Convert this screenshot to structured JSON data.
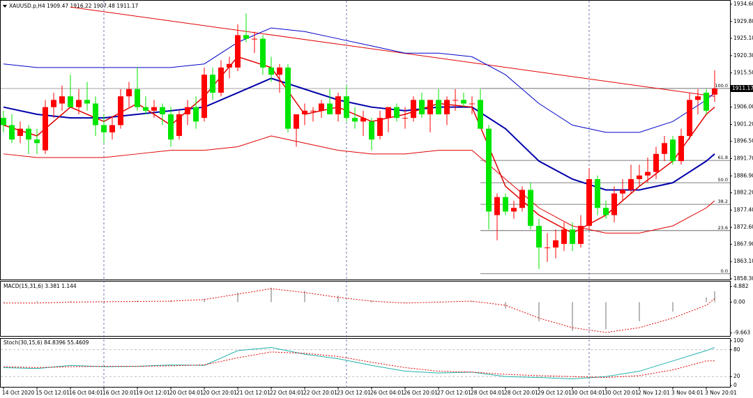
{
  "chart_data": [
    {
      "type": "candlestick",
      "title": "XAUUSD.p,H4  1909.47 1916.22 1907.48 1911.17",
      "up_color": "#ff0000",
      "down_color": "#00e600",
      "ylim": [
        1858.3,
        1934.6
      ],
      "yticks": [
        {
          "value": 1934.6,
          "label": "1934.60"
        },
        {
          "value": 1929.8,
          "label": "1929.80"
        },
        {
          "value": 1925.1,
          "label": "1925.10"
        },
        {
          "value": 1920.3,
          "label": "1920.30"
        },
        {
          "value": 1915.5,
          "label": "1915.50"
        },
        {
          "value": 1906.0,
          "label": "1906.00"
        },
        {
          "value": 1901.2,
          "label": "1901.20"
        },
        {
          "value": 1896.5,
          "label": "1896.50"
        },
        {
          "value": 1891.7,
          "label": "1891.70"
        },
        {
          "value": 1886.9,
          "label": "1886.90"
        },
        {
          "value": 1882.2,
          "label": "1882.20"
        },
        {
          "value": 1877.4,
          "label": "1877.40"
        },
        {
          "value": 1872.6,
          "label": "1872.60"
        },
        {
          "value": 1867.9,
          "label": "1867.90"
        },
        {
          "value": 1863.1,
          "label": "1863.10"
        },
        {
          "value": 1858.3,
          "label": "1858.30"
        }
      ],
      "current_price": {
        "value": 1911.17,
        "label": "1911.17"
      },
      "xticks": [
        {
          "value": 0,
          "label": "14 Oct 2020"
        },
        {
          "value": 4,
          "label": "15 Oct 12:01"
        },
        {
          "value": 8,
          "label": "16 Oct 04:01"
        },
        {
          "value": 12,
          "label": "16 Oct 20:01"
        },
        {
          "value": 16,
          "label": "19 Oct 12:01"
        },
        {
          "value": 20,
          "label": "20 Oct 04:01"
        },
        {
          "value": 24,
          "label": "20 Oct 20:01"
        },
        {
          "value": 28,
          "label": "21 Oct 12:01"
        },
        {
          "value": 32,
          "label": "22 Oct 04:01"
        },
        {
          "value": 36,
          "label": "22 Oct 20:01"
        },
        {
          "value": 40,
          "label": "23 Oct 12:01"
        },
        {
          "value": 44,
          "label": "26 Oct 04:01"
        },
        {
          "value": 48,
          "label": "26 Oct 20:01"
        },
        {
          "value": 52,
          "label": "27 Oct 12:01"
        },
        {
          "value": 56,
          "label": "28 Oct 04:01"
        },
        {
          "value": 60,
          "label": "28 Oct 20:01"
        },
        {
          "value": 64,
          "label": "29 Oct 12:01"
        },
        {
          "value": 68,
          "label": "30 Oct 04:01"
        },
        {
          "value": 72,
          "label": "30 Oct 20:01"
        },
        {
          "value": 76,
          "label": "2 Nov 12:01"
        },
        {
          "value": 80,
          "label": "3 Nov 04:01"
        },
        {
          "value": 84,
          "label": "3 Nov 20:01"
        }
      ],
      "separators": [
        12,
        41,
        70
      ],
      "ohlc": [
        [
          1903,
          1905,
          1899,
          1901
        ],
        [
          1901,
          1904,
          1896,
          1897
        ],
        [
          1898,
          1902,
          1896,
          1900
        ],
        [
          1900,
          1901,
          1893,
          1897
        ],
        [
          1897,
          1900,
          1893,
          1896
        ],
        [
          1894,
          1908,
          1893,
          1906
        ],
        [
          1906,
          1910,
          1903,
          1908
        ],
        [
          1907,
          1912,
          1905,
          1909
        ],
        [
          1909,
          1915,
          1906,
          1906
        ],
        [
          1906,
          1911,
          1904,
          1908
        ],
        [
          1908,
          1913,
          1905,
          1907
        ],
        [
          1907,
          1909,
          1898,
          1901
        ],
        [
          1901,
          1904,
          1896,
          1899
        ],
        [
          1899,
          1903,
          1897,
          1901
        ],
        [
          1901,
          1911,
          1900,
          1909
        ],
        [
          1909,
          1913,
          1906,
          1911
        ],
        [
          1911,
          1917,
          1905,
          1906
        ],
        [
          1906,
          1909,
          1904,
          1905
        ],
        [
          1905,
          1908,
          1903,
          1906
        ],
        [
          1906,
          1907,
          1901,
          1904
        ],
        [
          1904,
          1906,
          1895,
          1897
        ],
        [
          1898,
          1905,
          1897,
          1904
        ],
        [
          1904,
          1908,
          1901,
          1906
        ],
        [
          1906,
          1909,
          1900,
          1902
        ],
        [
          1903,
          1917,
          1902,
          1915
        ],
        [
          1915,
          1917,
          1908,
          1910
        ],
        [
          1910,
          1919,
          1909,
          1917
        ],
        [
          1917,
          1920,
          1914,
          1918
        ],
        [
          1917,
          1929,
          1916,
          1926
        ],
        [
          1926,
          1932,
          1924,
          1925
        ],
        [
          1925,
          1927,
          1921,
          1925
        ],
        [
          1925,
          1926,
          1915,
          1917
        ],
        [
          1917,
          1920,
          1913,
          1915
        ],
        [
          1915,
          1918,
          1910,
          1917
        ],
        [
          1917,
          1918,
          1899,
          1900
        ],
        [
          1900,
          1904,
          1895,
          1904
        ],
        [
          1904,
          1907,
          1901,
          1905
        ],
        [
          1905,
          1906,
          1902,
          1905
        ],
        [
          1905,
          1908,
          1903,
          1907
        ],
        [
          1907,
          1911,
          1904,
          1904
        ],
        [
          1904,
          1910,
          1902,
          1909
        ],
        [
          1909,
          1912,
          1902,
          1903
        ],
        [
          1903,
          1906,
          1900,
          1902
        ],
        [
          1902,
          1905,
          1898,
          1903
        ],
        [
          1902,
          1903,
          1894,
          1897
        ],
        [
          1898,
          1905,
          1897,
          1903
        ],
        [
          1903,
          1906,
          1899,
          1906
        ],
        [
          1906,
          1907,
          1902,
          1903
        ],
        [
          1903,
          1906,
          1900,
          1903
        ],
        [
          1903,
          1909,
          1902,
          1908
        ],
        [
          1908,
          1910,
          1903,
          1904
        ],
        [
          1904,
          1908,
          1899,
          1908
        ],
        [
          1908,
          1911,
          1904,
          1904
        ],
        [
          1904,
          1909,
          1901,
          1908
        ],
        [
          1908,
          1911,
          1905,
          1908
        ],
        [
          1908,
          1910,
          1906,
          1907
        ],
        [
          1907,
          1909,
          1904,
          1907
        ],
        [
          1908,
          1911,
          1900,
          1900
        ],
        [
          1900,
          1901,
          1872,
          1877
        ],
        [
          1876,
          1882,
          1869,
          1881
        ],
        [
          1881,
          1882,
          1876,
          1877
        ],
        [
          1877,
          1880,
          1875,
          1878
        ],
        [
          1878,
          1884,
          1877,
          1883
        ],
        [
          1883,
          1885,
          1872,
          1873
        ],
        [
          1873,
          1875,
          1861,
          1867
        ],
        [
          1867,
          1871,
          1863,
          1867
        ],
        [
          1867,
          1872,
          1864,
          1869
        ],
        [
          1868,
          1874,
          1866,
          1872
        ],
        [
          1872,
          1874,
          1866,
          1868
        ],
        [
          1868,
          1876,
          1867,
          1873
        ],
        [
          1873,
          1889,
          1872,
          1886
        ],
        [
          1886,
          1887,
          1876,
          1878
        ],
        [
          1878,
          1880,
          1875,
          1876
        ],
        [
          1876,
          1884,
          1874,
          1882
        ],
        [
          1882,
          1886,
          1880,
          1883
        ],
        [
          1883,
          1890,
          1882,
          1886
        ],
        [
          1886,
          1890,
          1884,
          1887
        ],
        [
          1887,
          1892,
          1885,
          1888
        ],
        [
          1888,
          1895,
          1886,
          1893
        ],
        [
          1893,
          1898,
          1891,
          1896
        ],
        [
          1897,
          1898,
          1890,
          1891
        ],
        [
          1891,
          1900,
          1890,
          1898
        ],
        [
          1898,
          1910,
          1897,
          1908
        ],
        [
          1908,
          1911,
          1904,
          1909
        ],
        [
          1910,
          1911,
          1904,
          1905
        ],
        [
          1909.47,
          1916.22,
          1907.48,
          1911.17
        ]
      ],
      "overlays": [
        {
          "color": "#e00000",
          "width": 1,
          "x": [
            8,
            85
          ],
          "values": [
            1933.8,
            1909
          ]
        },
        {
          "color": "#0000cc",
          "width": 1,
          "x": [
            0,
            4,
            8,
            12,
            16,
            20,
            24,
            28,
            32,
            36,
            40,
            44,
            48,
            52,
            56,
            60,
            64,
            68,
            72,
            76,
            80,
            84,
            85
          ],
          "values": [
            1918,
            1917,
            1917,
            1917,
            1917,
            1917,
            1918,
            1924,
            1928,
            1927,
            1925,
            1923,
            1921,
            1921,
            1920,
            1915,
            1907,
            1901,
            1899,
            1899,
            1902,
            1908,
            1910
          ]
        },
        {
          "color": "#e00000",
          "width": 1,
          "x": [
            0,
            4,
            8,
            12,
            16,
            20,
            24,
            28,
            32,
            36,
            40,
            44,
            48,
            52,
            56,
            60,
            64,
            68,
            72,
            76,
            80,
            84,
            85
          ],
          "values": [
            1893,
            1892,
            1892,
            1892,
            1893,
            1894,
            1894,
            1895,
            1898,
            1896,
            1894,
            1893,
            1893,
            1894,
            1894,
            1886,
            1878,
            1873,
            1871,
            1871,
            1873,
            1878,
            1880
          ]
        },
        {
          "color": "#0000aa",
          "width": 2,
          "x": [
            0,
            4,
            8,
            12,
            16,
            20,
            24,
            28,
            32,
            36,
            40,
            44,
            48,
            52,
            56,
            60,
            64,
            68,
            72,
            76,
            80,
            84,
            85
          ],
          "values": [
            1906,
            1904,
            1903,
            1903,
            1904,
            1905,
            1906,
            1910,
            1914,
            1911,
            1908,
            1906,
            1905,
            1906,
            1906,
            1900,
            1891,
            1886,
            1883,
            1883,
            1885,
            1891,
            1893
          ]
        },
        {
          "color": "#e00000",
          "width": 1.5,
          "x": [
            0,
            4,
            8,
            12,
            16,
            20,
            24,
            28,
            32,
            36,
            40,
            44,
            48,
            52,
            56,
            60,
            64,
            68,
            72,
            76,
            80,
            84,
            85
          ],
          "values": [
            1901,
            1898,
            1906,
            1902,
            1907,
            1901,
            1909,
            1920,
            1917,
            1904,
            1906,
            1902,
            1904,
            1907,
            1906,
            1884,
            1876,
            1871,
            1876,
            1884,
            1891,
            1904,
            1906
          ]
        }
      ],
      "fibonacci": {
        "x": 57,
        "levels": [
          {
            "value": 1911.2,
            "label": "100.0"
          },
          {
            "value": 1891.2,
            "label": "61.8"
          },
          {
            "value": 1885.0,
            "label": "50.0"
          },
          {
            "value": 1879.0,
            "label": "38.2"
          },
          {
            "value": 1871.7,
            "label": "23.6"
          },
          {
            "value": 1859.7,
            "label": "0.0"
          }
        ]
      }
    },
    {
      "type": "macd",
      "title": "MACD(15,31,6) 3.381 1.144",
      "ylim": [
        -10.6,
        6.2
      ],
      "yticks": [
        {
          "value": 4.882,
          "label": "4.882"
        },
        {
          "value": 0,
          "label": "0.00"
        },
        {
          "value": -9.663,
          "label": "-9.663"
        }
      ],
      "histogram": {
        "color": "#a0a0a0",
        "x": [
          0,
          4,
          8,
          12,
          16,
          20,
          24,
          28,
          32,
          36,
          40,
          44,
          48,
          52,
          56,
          60,
          64,
          68,
          72,
          76,
          80,
          84,
          85
        ],
        "values": [
          0.2,
          0.3,
          0.3,
          0.4,
          0.5,
          0.6,
          1.0,
          3.0,
          4.5,
          3.5,
          2.0,
          0.5,
          -0.2,
          0.0,
          0.3,
          -2.0,
          -6.0,
          -9.0,
          -8.5,
          -6.0,
          -3.0,
          1.5,
          3.4
        ]
      },
      "signal": {
        "color": "#e00000",
        "x": [
          0,
          4,
          8,
          12,
          16,
          20,
          24,
          28,
          32,
          36,
          40,
          44,
          48,
          52,
          56,
          60,
          64,
          68,
          72,
          76,
          80,
          84,
          85
        ],
        "values": [
          -0.3,
          -0.3,
          0,
          0.1,
          0.2,
          0.3,
          0.8,
          2.5,
          4.2,
          3.0,
          1.5,
          0.3,
          -0.3,
          0.0,
          0.3,
          -1,
          -5,
          -8,
          -9.5,
          -8,
          -5,
          -1,
          1.1
        ]
      }
    },
    {
      "type": "stochastic",
      "title": "Stoch(30,15,6) 84.8396 55.4609",
      "ylim": [
        -3,
        103
      ],
      "yticks": [
        100,
        80,
        20,
        0
      ],
      "levels": [
        80,
        20
      ],
      "main": {
        "color": "#20b2aa",
        "x": [
          0,
          4,
          8,
          12,
          16,
          20,
          24,
          28,
          32,
          36,
          40,
          44,
          48,
          52,
          56,
          60,
          64,
          68,
          72,
          76,
          80,
          84,
          85
        ],
        "values": [
          40,
          38,
          45,
          42,
          43,
          46,
          45,
          78,
          85,
          70,
          60,
          45,
          32,
          28,
          30,
          20,
          18,
          15,
          20,
          32,
          55,
          78,
          85
        ]
      },
      "signal": {
        "color": "#e00000",
        "x": [
          0,
          4,
          8,
          12,
          16,
          20,
          24,
          28,
          32,
          36,
          40,
          44,
          48,
          52,
          56,
          60,
          64,
          68,
          72,
          76,
          80,
          84,
          85
        ],
        "values": [
          42,
          40,
          42,
          43,
          43,
          44,
          46,
          62,
          75,
          72,
          65,
          52,
          40,
          32,
          30,
          25,
          22,
          20,
          18,
          22,
          35,
          55,
          55
        ]
      }
    }
  ]
}
